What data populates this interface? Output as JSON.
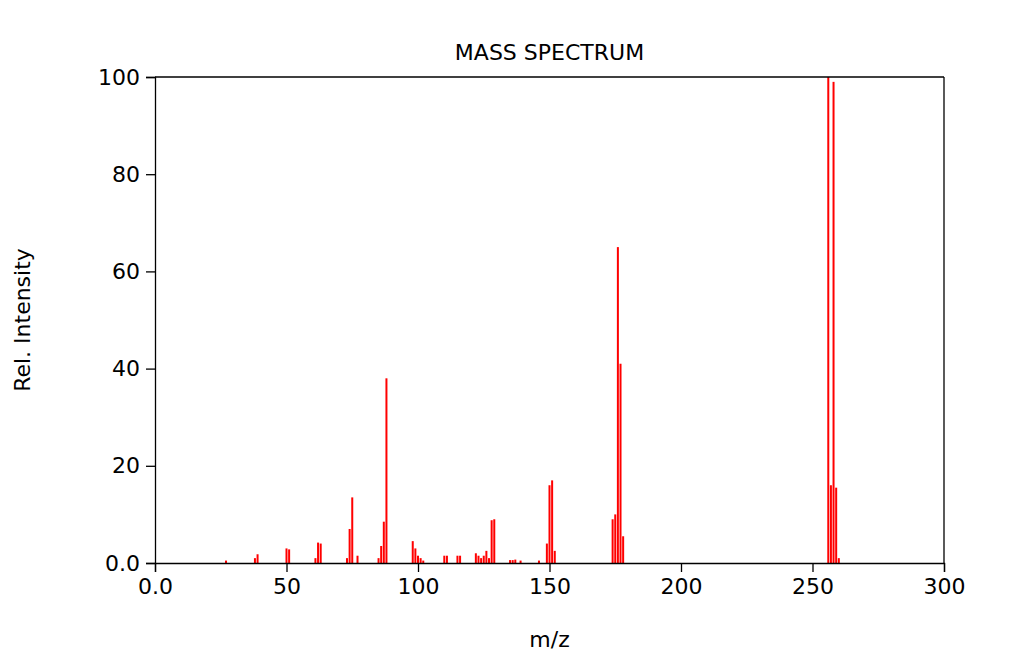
{
  "chart_data": {
    "type": "bar",
    "title": "MASS SPECTRUM",
    "x_label": "m/z",
    "y_label": "Rel. Intensity",
    "color": "#ff0000",
    "x": [
      27,
      38,
      39,
      50,
      51,
      61,
      62,
      63,
      73,
      74,
      75,
      77,
      85,
      86,
      87,
      88,
      98,
      99,
      100,
      101,
      102,
      110,
      111,
      115,
      116,
      122,
      123,
      124,
      125,
      126,
      127,
      128,
      129,
      135,
      136,
      137,
      139,
      146,
      149,
      150,
      151,
      152,
      174,
      175,
      176,
      177,
      178,
      256,
      257,
      258,
      259,
      260
    ],
    "values": [
      0.5,
      1.0,
      1.8,
      3.0,
      2.8,
      1.0,
      4.2,
      4.0,
      1.0,
      7.0,
      13.5,
      1.5,
      1.0,
      3.5,
      8.5,
      38.0,
      4.5,
      3.0,
      1.5,
      1.0,
      0.5,
      1.5,
      1.5,
      1.5,
      1.5,
      2.0,
      1.5,
      1.0,
      1.5,
      2.5,
      1.0,
      8.8,
      9.0,
      0.6,
      0.6,
      0.7,
      0.5,
      0.5,
      4.0,
      16.0,
      17.0,
      2.5,
      9.0,
      10.0,
      65.0,
      41.0,
      5.5,
      100.0,
      16.0,
      99.0,
      15.5,
      1.0
    ],
    "xlim": [
      0,
      300
    ],
    "xticks": [
      {
        "value": 0,
        "label": "0.0"
      },
      50,
      100,
      150,
      200,
      250,
      300
    ],
    "ylim": [
      0,
      100
    ],
    "yticks": [
      {
        "value": 0,
        "label": "0.0"
      },
      20,
      40,
      60,
      80,
      100
    ],
    "grid": false
  }
}
